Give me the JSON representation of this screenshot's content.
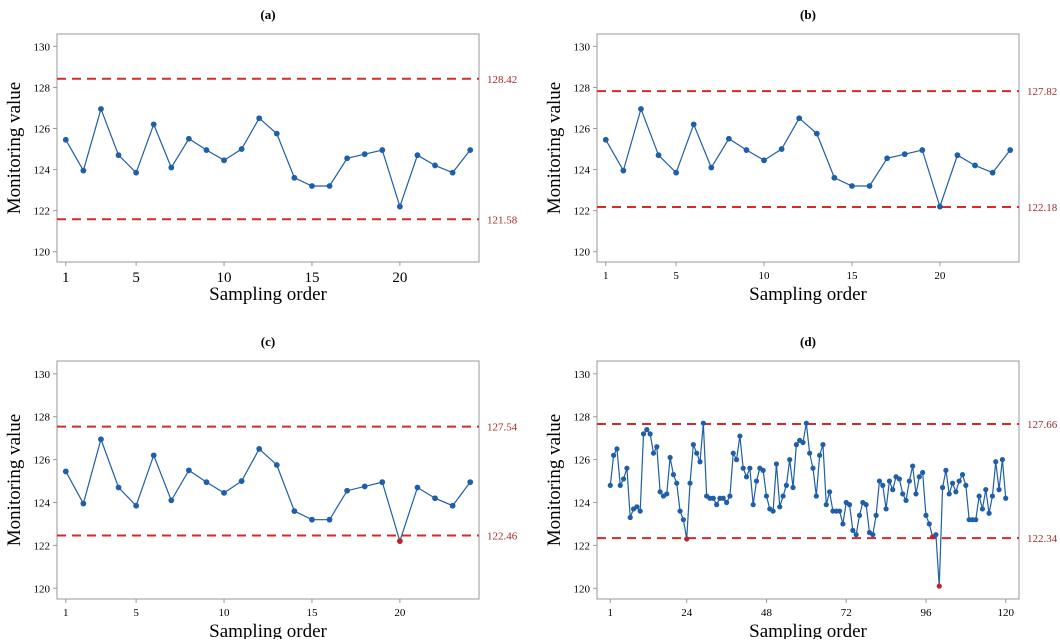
{
  "colors": {
    "line": "#1f5ea8",
    "point": "#1f5ea8",
    "out_point": "#c0242b",
    "limit": "#d42a2a",
    "limit_label": "#a52a2a",
    "frame": "#999999",
    "text": "#000000"
  },
  "chart_data": [
    {
      "type": "line",
      "title": "(a)",
      "xlabel": "Sampling order",
      "ylabel": "Monitoring value",
      "xlim": [
        0.5,
        24.5
      ],
      "ylim": [
        119.5,
        130.6
      ],
      "xticks": [
        1,
        5,
        10,
        15,
        20
      ],
      "yticks": [
        120,
        122,
        124,
        126,
        128,
        130
      ],
      "grid": false,
      "limits": [
        {
          "value": 128.42,
          "label": "128.42"
        },
        {
          "value": 121.58,
          "label": "121.58"
        }
      ],
      "series": [
        {
          "x": [
            1,
            2,
            3,
            4,
            5,
            6,
            7,
            8,
            9,
            10,
            11,
            12,
            13,
            14,
            15,
            16,
            17,
            18,
            19,
            20,
            21,
            22,
            23,
            24
          ],
          "values": [
            125.45,
            123.95,
            126.95,
            124.7,
            123.85,
            126.2,
            124.1,
            125.5,
            124.95,
            124.45,
            125.0,
            126.5,
            125.75,
            123.6,
            123.2,
            123.2,
            124.55,
            124.75,
            124.95,
            122.2,
            124.7,
            124.2,
            123.85,
            124.95
          ]
        }
      ],
      "highlighted_x": []
    },
    {
      "type": "line",
      "title": "(b)",
      "xlabel": "Sampling order",
      "ylabel": "Monitoring value",
      "xlim": [
        0.5,
        24.5
      ],
      "ylim": [
        119.5,
        130.6
      ],
      "xticks": [
        1,
        5,
        10,
        15,
        20
      ],
      "yticks": [
        120,
        122,
        124,
        126,
        128,
        130
      ],
      "grid": false,
      "limits": [
        {
          "value": 127.82,
          "label": "127.82"
        },
        {
          "value": 122.18,
          "label": "122.18"
        }
      ],
      "series": [
        {
          "x": [
            1,
            2,
            3,
            4,
            5,
            6,
            7,
            8,
            9,
            10,
            11,
            12,
            13,
            14,
            15,
            16,
            17,
            18,
            19,
            20,
            21,
            22,
            23,
            24
          ],
          "values": [
            125.45,
            123.95,
            126.95,
            124.7,
            123.85,
            126.2,
            124.1,
            125.5,
            124.95,
            124.45,
            125.0,
            126.5,
            125.75,
            123.6,
            123.2,
            123.2,
            124.55,
            124.75,
            124.95,
            122.2,
            124.7,
            124.2,
            123.85,
            124.95
          ]
        }
      ],
      "highlighted_x": []
    },
    {
      "type": "line",
      "title": "(c)",
      "xlabel": "Sampling order",
      "ylabel": "Monitoring value",
      "xlim": [
        0.5,
        24.5
      ],
      "ylim": [
        119.5,
        130.6
      ],
      "xticks": [
        1,
        5,
        10,
        15,
        20
      ],
      "yticks": [
        120,
        122,
        124,
        126,
        128,
        130
      ],
      "grid": false,
      "limits": [
        {
          "value": 127.54,
          "label": "127.54"
        },
        {
          "value": 122.46,
          "label": "122.46"
        }
      ],
      "series": [
        {
          "x": [
            1,
            2,
            3,
            4,
            5,
            6,
            7,
            8,
            9,
            10,
            11,
            12,
            13,
            14,
            15,
            16,
            17,
            18,
            19,
            20,
            21,
            22,
            23,
            24
          ],
          "values": [
            125.45,
            123.95,
            126.95,
            124.7,
            123.85,
            126.2,
            124.1,
            125.5,
            124.95,
            124.45,
            125.0,
            126.5,
            125.75,
            123.6,
            123.2,
            123.2,
            124.55,
            124.75,
            124.95,
            122.2,
            124.7,
            124.2,
            123.85,
            124.95
          ]
        }
      ],
      "highlighted_x": [
        20
      ]
    },
    {
      "type": "line",
      "title": "(d)",
      "xlabel": "Sampling order",
      "ylabel": "Monitoring value",
      "xlim": [
        -3,
        124
      ],
      "ylim": [
        119.5,
        130.6
      ],
      "xticks": [
        1,
        24,
        48,
        72,
        96,
        120
      ],
      "yticks": [
        120,
        122,
        124,
        126,
        128,
        130
      ],
      "grid": false,
      "limits": [
        {
          "value": 127.66,
          "label": "127.66"
        },
        {
          "value": 122.34,
          "label": "122.34"
        }
      ],
      "series": [
        {
          "x": [
            1,
            2,
            3,
            4,
            5,
            6,
            7,
            8,
            9,
            10,
            11,
            12,
            13,
            14,
            15,
            16,
            17,
            18,
            19,
            20,
            21,
            22,
            23,
            24,
            25,
            26,
            27,
            28,
            29,
            30,
            31,
            32,
            33,
            34,
            35,
            36,
            37,
            38,
            39,
            40,
            41,
            42,
            43,
            44,
            45,
            46,
            47,
            48,
            49,
            50,
            51,
            52,
            53,
            54,
            55,
            56,
            57,
            58,
            59,
            60,
            61,
            62,
            63,
            64,
            65,
            66,
            67,
            68,
            69,
            70,
            71,
            72,
            73,
            74,
            75,
            76,
            77,
            78,
            79,
            80,
            81,
            82,
            83,
            84,
            85,
            86,
            87,
            88,
            89,
            90,
            91,
            92,
            93,
            94,
            95,
            96,
            97,
            98,
            99,
            100,
            101,
            102,
            103,
            104,
            105,
            106,
            107,
            108,
            109,
            110,
            111,
            112,
            113,
            114,
            115,
            116,
            117,
            118,
            119,
            120
          ],
          "values": [
            124.8,
            126.2,
            126.5,
            124.8,
            125.1,
            125.6,
            123.3,
            123.7,
            123.8,
            123.6,
            127.2,
            127.4,
            127.2,
            126.3,
            126.6,
            124.5,
            124.3,
            124.4,
            126.1,
            125.3,
            124.9,
            123.6,
            123.2,
            122.3,
            124.9,
            126.7,
            126.3,
            125.9,
            127.7,
            124.3,
            124.2,
            124.2,
            123.9,
            124.2,
            124.2,
            124.0,
            124.3,
            126.3,
            126.0,
            127.1,
            125.6,
            125.2,
            125.6,
            123.9,
            125.0,
            125.6,
            125.5,
            124.3,
            123.7,
            123.6,
            125.8,
            123.8,
            124.3,
            124.8,
            126.0,
            124.7,
            126.7,
            126.9,
            126.8,
            127.7,
            126.3,
            125.6,
            124.3,
            126.2,
            126.7,
            123.9,
            124.5,
            123.6,
            123.6,
            123.6,
            123.0,
            124.0,
            123.9,
            122.7,
            122.5,
            123.4,
            124.0,
            123.9,
            122.6,
            122.5,
            123.4,
            125.0,
            124.8,
            123.7,
            125.0,
            124.6,
            125.2,
            125.1,
            124.4,
            124.1,
            125.0,
            125.7,
            124.4,
            125.2,
            125.4,
            123.4,
            123.0,
            122.4,
            122.5,
            120.1,
            124.7,
            125.5,
            124.4,
            124.9,
            124.5,
            125.0,
            125.3,
            124.8,
            123.2,
            123.2,
            123.2,
            124.3,
            123.7,
            124.6,
            123.5,
            124.3,
            125.9,
            124.6,
            126.0,
            124.2
          ]
        }
      ],
      "highlighted_x": [
        24,
        98,
        100
      ]
    }
  ]
}
